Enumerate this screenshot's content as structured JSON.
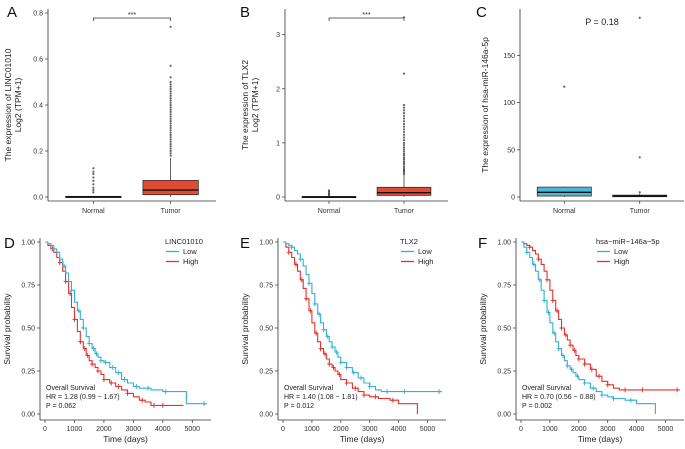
{
  "chart_data": [
    {
      "panel": "A",
      "type": "box",
      "ylabel_main": "The expression of LINC01010",
      "ylabel_sub": "Log2 (TPM+1)",
      "categories": [
        "Normal",
        "Tumor"
      ],
      "ylim": [
        0,
        0.8
      ],
      "yticks": [
        "0.0",
        "0.2",
        "0.4",
        "0.6",
        "0.8"
      ],
      "significance": "***",
      "colors": [
        "#4bb8d8",
        "#e34a33"
      ],
      "boxes": [
        {
          "q1": 0,
          "median": 0.0,
          "q3": 0.003,
          "lo": 0,
          "hi": 0.004,
          "outliers": [
            0.02,
            0.03,
            0.04,
            0.055,
            0.07,
            0.085,
            0.1,
            0.11,
            0.125
          ]
        },
        {
          "q1": 0.01,
          "median": 0.03,
          "q3": 0.072,
          "lo": 0,
          "hi": 0.17,
          "outliers": [
            0.18,
            0.19,
            0.2,
            0.21,
            0.22,
            0.23,
            0.24,
            0.25,
            0.26,
            0.27,
            0.28,
            0.29,
            0.3,
            0.31,
            0.32,
            0.33,
            0.34,
            0.35,
            0.36,
            0.37,
            0.38,
            0.39,
            0.4,
            0.41,
            0.42,
            0.43,
            0.44,
            0.45,
            0.46,
            0.47,
            0.48,
            0.49,
            0.5,
            0.52,
            0.57,
            0.74
          ]
        }
      ]
    },
    {
      "panel": "B",
      "type": "box",
      "ylabel_main": "The expression of TLX2",
      "ylabel_sub": "Log2 (TPM+1)",
      "categories": [
        "Normal",
        "Tumor"
      ],
      "ylim": [
        0,
        3.4
      ],
      "yticks": [
        "0",
        "1",
        "2",
        "3"
      ],
      "ytick_values": [
        0,
        1,
        2,
        3
      ],
      "significance": "***",
      "colors": [
        "#4bb8d8",
        "#e34a33"
      ],
      "boxes": [
        {
          "q1": 0,
          "median": 0.0,
          "q3": 0.01,
          "lo": 0,
          "hi": 0.015,
          "outliers": [
            0.03,
            0.05,
            0.07,
            0.1,
            0.12
          ]
        },
        {
          "q1": 0.03,
          "median": 0.08,
          "q3": 0.18,
          "lo": 0,
          "hi": 0.4,
          "outliers": [
            0.42,
            0.45,
            0.48,
            0.5,
            0.53,
            0.56,
            0.6,
            0.63,
            0.66,
            0.7,
            0.73,
            0.77,
            0.8,
            0.84,
            0.88,
            0.92,
            0.96,
            1.0,
            1.05,
            1.1,
            1.15,
            1.2,
            1.25,
            1.3,
            1.35,
            1.4,
            1.45,
            1.5,
            1.55,
            1.6,
            1.65,
            1.7,
            2.28,
            3.32
          ]
        }
      ]
    },
    {
      "panel": "C",
      "type": "box",
      "ylabel_main": "The expression of hsa-miR-146a-5p",
      "categories": [
        "Normal",
        "Tumor"
      ],
      "ylim": [
        0,
        195
      ],
      "yticks": [
        "0",
        "50",
        "100",
        "150"
      ],
      "ytick_values": [
        0,
        50,
        100,
        150
      ],
      "significance_text": "P = 0.18",
      "colors": [
        "#4bb8d8",
        "#e34a33"
      ],
      "boxes": [
        {
          "q1": 1,
          "median": 5,
          "q3": 10.5,
          "lo": 0,
          "hi": 11,
          "outliers": [
            117
          ]
        },
        {
          "q1": 0.3,
          "median": 1.0,
          "q3": 2.0,
          "lo": 0,
          "hi": 3.5,
          "outliers": [
            5,
            42,
            190
          ]
        }
      ]
    },
    {
      "panel": "D",
      "type": "line",
      "subtype": "kaplan-meier",
      "legend_title": "LINC01010",
      "series": [
        {
          "name": "Low",
          "color": "#36afd1"
        },
        {
          "name": "High",
          "color": "#e3322b"
        }
      ],
      "xlabel": "Time (days)",
      "ylabel": "Survival probability",
      "xticks": [
        0,
        1000,
        2000,
        3000,
        4000,
        5000
      ],
      "yticks": [
        "0.00",
        "0.25",
        "0.50",
        "0.75",
        "1.00"
      ],
      "xlim": [
        0,
        5500
      ],
      "ylim": [
        0,
        1
      ],
      "annotation": [
        "Overall Survival",
        "HR = 1.28 (0.99 − 1.67)",
        "P = 0.062"
      ],
      "low_curve": [
        [
          0,
          1
        ],
        [
          100,
          0.99
        ],
        [
          200,
          0.98
        ],
        [
          300,
          0.96
        ],
        [
          400,
          0.94
        ],
        [
          500,
          0.9
        ],
        [
          600,
          0.86
        ],
        [
          700,
          0.82
        ],
        [
          800,
          0.77
        ],
        [
          900,
          0.72
        ],
        [
          1000,
          0.65
        ],
        [
          1100,
          0.6
        ],
        [
          1200,
          0.55
        ],
        [
          1300,
          0.5
        ],
        [
          1400,
          0.45
        ],
        [
          1500,
          0.41
        ],
        [
          1600,
          0.38
        ],
        [
          1700,
          0.35
        ],
        [
          1800,
          0.33
        ],
        [
          1900,
          0.31
        ],
        [
          2000,
          0.3
        ],
        [
          2200,
          0.27
        ],
        [
          2400,
          0.24
        ],
        [
          2600,
          0.2
        ],
        [
          2800,
          0.18
        ],
        [
          3000,
          0.16
        ],
        [
          3200,
          0.15
        ],
        [
          3600,
          0.14
        ],
        [
          4000,
          0.13
        ],
        [
          4700,
          0.13
        ],
        [
          4800,
          0.06
        ],
        [
          5500,
          0.06
        ]
      ],
      "high_curve": [
        [
          0,
          1
        ],
        [
          100,
          0.98
        ],
        [
          200,
          0.96
        ],
        [
          300,
          0.94
        ],
        [
          400,
          0.91
        ],
        [
          500,
          0.88
        ],
        [
          600,
          0.83
        ],
        [
          700,
          0.77
        ],
        [
          800,
          0.7
        ],
        [
          900,
          0.62
        ],
        [
          1000,
          0.55
        ],
        [
          1100,
          0.48
        ],
        [
          1200,
          0.42
        ],
        [
          1300,
          0.38
        ],
        [
          1400,
          0.34
        ],
        [
          1500,
          0.31
        ],
        [
          1600,
          0.29
        ],
        [
          1700,
          0.27
        ],
        [
          1800,
          0.25
        ],
        [
          1900,
          0.23
        ],
        [
          2000,
          0.2
        ],
        [
          2200,
          0.18
        ],
        [
          2400,
          0.16
        ],
        [
          2600,
          0.14
        ],
        [
          2800,
          0.12
        ],
        [
          3000,
          0.1
        ],
        [
          3200,
          0.08
        ],
        [
          3400,
          0.07
        ],
        [
          3600,
          0.05
        ],
        [
          4000,
          0.05
        ],
        [
          4700,
          0.05
        ]
      ],
      "low_censor": [
        300,
        650,
        900,
        1150,
        1300,
        1500,
        1650,
        1750,
        1900,
        2050,
        2300,
        2500,
        2700,
        3100,
        3500,
        4100,
        5400
      ],
      "high_censor": [
        250,
        500,
        700,
        850,
        1000,
        1200,
        1350,
        1450,
        1600,
        1800,
        2000,
        2250,
        2500,
        2800,
        3300,
        3700,
        4000
      ]
    },
    {
      "panel": "E",
      "type": "line",
      "subtype": "kaplan-meier",
      "legend_title": "TLX2",
      "series": [
        {
          "name": "Low",
          "color": "#36afd1"
        },
        {
          "name": "High",
          "color": "#e3322b"
        }
      ],
      "xlabel": "Time (days)",
      "ylabel": "Survival probability",
      "xticks": [
        0,
        1000,
        2000,
        3000,
        4000,
        5000
      ],
      "yticks": [
        "0.00",
        "0.25",
        "0.50",
        "0.75",
        "1.00"
      ],
      "xlim": [
        0,
        5500
      ],
      "ylim": [
        0,
        1
      ],
      "annotation": [
        "Overall Survival",
        "HR = 1.40 (1.08 − 1.81)",
        "P = 0.012"
      ],
      "low_curve": [
        [
          0,
          1
        ],
        [
          100,
          0.99
        ],
        [
          200,
          0.98
        ],
        [
          300,
          0.97
        ],
        [
          400,
          0.95
        ],
        [
          500,
          0.93
        ],
        [
          600,
          0.9
        ],
        [
          700,
          0.86
        ],
        [
          800,
          0.81
        ],
        [
          900,
          0.76
        ],
        [
          1000,
          0.7
        ],
        [
          1100,
          0.64
        ],
        [
          1200,
          0.58
        ],
        [
          1300,
          0.53
        ],
        [
          1400,
          0.49
        ],
        [
          1500,
          0.45
        ],
        [
          1600,
          0.42
        ],
        [
          1700,
          0.39
        ],
        [
          1800,
          0.36
        ],
        [
          1900,
          0.33
        ],
        [
          2000,
          0.3
        ],
        [
          2200,
          0.27
        ],
        [
          2400,
          0.24
        ],
        [
          2600,
          0.21
        ],
        [
          2800,
          0.18
        ],
        [
          3000,
          0.16
        ],
        [
          3200,
          0.14
        ],
        [
          3400,
          0.13
        ],
        [
          5500,
          0.13
        ]
      ],
      "high_curve": [
        [
          0,
          1
        ],
        [
          100,
          0.97
        ],
        [
          200,
          0.94
        ],
        [
          300,
          0.91
        ],
        [
          400,
          0.87
        ],
        [
          500,
          0.83
        ],
        [
          600,
          0.78
        ],
        [
          700,
          0.73
        ],
        [
          800,
          0.67
        ],
        [
          900,
          0.6
        ],
        [
          1000,
          0.53
        ],
        [
          1100,
          0.47
        ],
        [
          1200,
          0.42
        ],
        [
          1300,
          0.38
        ],
        [
          1400,
          0.35
        ],
        [
          1500,
          0.32
        ],
        [
          1600,
          0.29
        ],
        [
          1700,
          0.27
        ],
        [
          1800,
          0.25
        ],
        [
          1900,
          0.23
        ],
        [
          2000,
          0.2
        ],
        [
          2200,
          0.18
        ],
        [
          2400,
          0.15
        ],
        [
          2600,
          0.13
        ],
        [
          2800,
          0.11
        ],
        [
          3000,
          0.1
        ],
        [
          3300,
          0.09
        ],
        [
          3700,
          0.08
        ],
        [
          4000,
          0.06
        ],
        [
          4600,
          0.06
        ],
        [
          4650,
          0.0
        ]
      ],
      "low_censor": [
        300,
        600,
        900,
        1100,
        1250,
        1400,
        1550,
        1700,
        1850,
        2000,
        2200,
        2450,
        2700,
        3000,
        3600,
        4200,
        5400
      ],
      "high_censor": [
        200,
        450,
        650,
        800,
        950,
        1150,
        1300,
        1450,
        1600,
        1750,
        1950,
        2200,
        2500,
        2800,
        3200,
        3800
      ]
    },
    {
      "panel": "F",
      "type": "line",
      "subtype": "kaplan-meier",
      "legend_title": "hsa−miR−146a−5p",
      "series": [
        {
          "name": "Low",
          "color": "#36afd1"
        },
        {
          "name": "High",
          "color": "#e3322b"
        }
      ],
      "xlabel": "Time (days)",
      "ylabel": "Survival probability",
      "xticks": [
        0,
        1000,
        2000,
        3000,
        4000,
        5000
      ],
      "yticks": [
        "0.00",
        "0.25",
        "0.50",
        "0.75",
        "1.00"
      ],
      "xlim": [
        0,
        5500
      ],
      "ylim": [
        0,
        1
      ],
      "annotation": [
        "Overall Survival",
        "HR = 0.70 (0.56 − 0.88)",
        "P = 0.002"
      ],
      "low_curve": [
        [
          0,
          1
        ],
        [
          100,
          0.97
        ],
        [
          200,
          0.94
        ],
        [
          300,
          0.91
        ],
        [
          400,
          0.87
        ],
        [
          500,
          0.83
        ],
        [
          600,
          0.78
        ],
        [
          700,
          0.72
        ],
        [
          800,
          0.66
        ],
        [
          900,
          0.59
        ],
        [
          1000,
          0.53
        ],
        [
          1100,
          0.47
        ],
        [
          1200,
          0.42
        ],
        [
          1300,
          0.38
        ],
        [
          1400,
          0.34
        ],
        [
          1500,
          0.31
        ],
        [
          1600,
          0.28
        ],
        [
          1700,
          0.26
        ],
        [
          1800,
          0.24
        ],
        [
          1900,
          0.22
        ],
        [
          2000,
          0.2
        ],
        [
          2200,
          0.18
        ],
        [
          2400,
          0.15
        ],
        [
          2600,
          0.13
        ],
        [
          2800,
          0.11
        ],
        [
          3000,
          0.1
        ],
        [
          3200,
          0.09
        ],
        [
          3600,
          0.08
        ],
        [
          4000,
          0.06
        ],
        [
          4600,
          0.06
        ],
        [
          4650,
          0.0
        ]
      ],
      "high_curve": [
        [
          0,
          1
        ],
        [
          100,
          0.99
        ],
        [
          200,
          0.98
        ],
        [
          300,
          0.97
        ],
        [
          400,
          0.95
        ],
        [
          500,
          0.93
        ],
        [
          600,
          0.9
        ],
        [
          700,
          0.87
        ],
        [
          800,
          0.83
        ],
        [
          900,
          0.78
        ],
        [
          1000,
          0.72
        ],
        [
          1100,
          0.66
        ],
        [
          1200,
          0.6
        ],
        [
          1300,
          0.55
        ],
        [
          1400,
          0.5
        ],
        [
          1500,
          0.46
        ],
        [
          1600,
          0.43
        ],
        [
          1700,
          0.4
        ],
        [
          1800,
          0.37
        ],
        [
          1900,
          0.34
        ],
        [
          2000,
          0.32
        ],
        [
          2200,
          0.29
        ],
        [
          2400,
          0.26
        ],
        [
          2600,
          0.22
        ],
        [
          2800,
          0.19
        ],
        [
          3000,
          0.17
        ],
        [
          3200,
          0.15
        ],
        [
          3400,
          0.14
        ],
        [
          5500,
          0.14
        ]
      ],
      "low_censor": [
        200,
        450,
        650,
        800,
        950,
        1150,
        1300,
        1450,
        1600,
        1750,
        1950,
        2200,
        2500,
        2800,
        3200,
        3800
      ],
      "high_censor": [
        300,
        600,
        900,
        1100,
        1250,
        1400,
        1550,
        1700,
        1850,
        2000,
        2200,
        2450,
        2700,
        3000,
        3600,
        4200,
        5400
      ]
    }
  ]
}
